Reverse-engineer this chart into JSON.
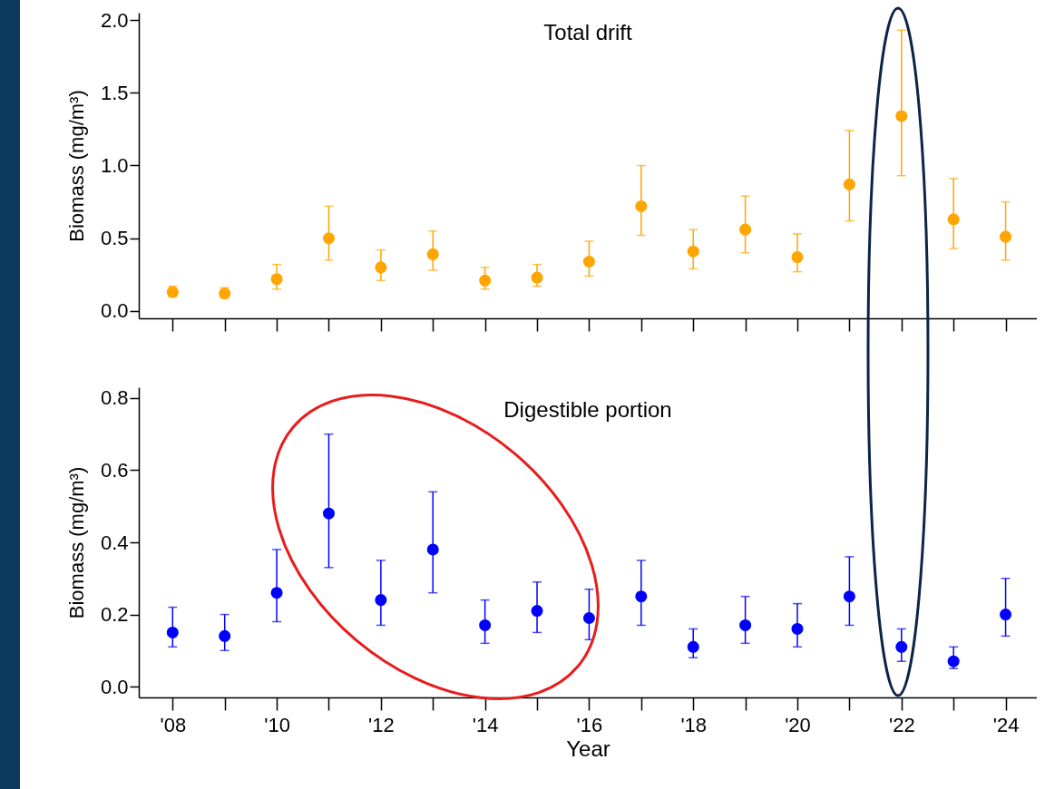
{
  "chart_data": [
    {
      "type": "scatter",
      "title": "Total drift",
      "ylabel": "Biomass (mg/m³)",
      "marker": "circle",
      "tick_labels": "y",
      "x": [
        2008,
        2009,
        2010,
        2011,
        2012,
        2013,
        2014,
        2015,
        2016,
        2017,
        2018,
        2019,
        2020,
        2021,
        2022,
        2023,
        2024
      ],
      "series": [
        {
          "color": "#ffa500",
          "values": [
            0.13,
            0.12,
            0.22,
            0.5,
            0.3,
            0.39,
            0.21,
            0.23,
            0.34,
            0.72,
            0.41,
            0.56,
            0.37,
            0.87,
            1.34,
            0.63,
            0.51
          ],
          "errors": [
            [
              0.1,
              0.17
            ],
            [
              0.09,
              0.16
            ],
            [
              0.15,
              0.32
            ],
            [
              0.35,
              0.72
            ],
            [
              0.21,
              0.42
            ],
            [
              0.28,
              0.55
            ],
            [
              0.15,
              0.3
            ],
            [
              0.17,
              0.32
            ],
            [
              0.24,
              0.48
            ],
            [
              0.52,
              1.0
            ],
            [
              0.29,
              0.56
            ],
            [
              0.4,
              0.79
            ],
            [
              0.27,
              0.53
            ],
            [
              0.62,
              1.24
            ],
            [
              0.93,
              1.93
            ],
            [
              0.43,
              0.91
            ],
            [
              0.35,
              0.75
            ]
          ]
        }
      ],
      "xlim": [
        2007.35,
        2024.6
      ],
      "xticks": [
        {
          "value": 2008,
          "label": null
        },
        {
          "value": 2009,
          "label": null
        },
        {
          "value": 2010,
          "label": null
        },
        {
          "value": 2011,
          "label": null
        },
        {
          "value": 2012,
          "label": null
        },
        {
          "value": 2013,
          "label": null
        },
        {
          "value": 2014,
          "label": null
        },
        {
          "value": 2015,
          "label": null
        },
        {
          "value": 2016,
          "label": null
        },
        {
          "value": 2017,
          "label": null
        },
        {
          "value": 2018,
          "label": null
        },
        {
          "value": 2019,
          "label": null
        },
        {
          "value": 2020,
          "label": null
        },
        {
          "value": 2021,
          "label": null
        },
        {
          "value": 2022,
          "label": null
        },
        {
          "value": 2023,
          "label": null
        },
        {
          "value": 2024,
          "label": null
        }
      ],
      "ylim": [
        -0.05,
        2.05
      ],
      "yticks": [
        {
          "value": 0,
          "label": "0.0"
        },
        {
          "value": 0.5,
          "label": "0.5"
        },
        {
          "value": 1,
          "label": "1.0"
        },
        {
          "value": 1.5,
          "label": "1.5"
        },
        {
          "value": 2,
          "label": "2.0"
        }
      ]
    },
    {
      "type": "scatter",
      "title": "Digestible portion",
      "xlabel": "Year",
      "ylabel": "Biomass (mg/m³)",
      "marker": "circle",
      "x": [
        2008,
        2009,
        2010,
        2011,
        2012,
        2013,
        2014,
        2015,
        2016,
        2017,
        2018,
        2019,
        2020,
        2021,
        2022,
        2023,
        2024
      ],
      "series": [
        {
          "color": "#0000ff",
          "values": [
            0.15,
            0.14,
            0.26,
            0.48,
            0.24,
            0.38,
            0.17,
            0.21,
            0.19,
            0.25,
            0.11,
            0.17,
            0.16,
            0.25,
            0.11,
            0.07,
            0.2
          ],
          "errors": [
            [
              0.11,
              0.22
            ],
            [
              0.1,
              0.2
            ],
            [
              0.18,
              0.38
            ],
            [
              0.33,
              0.7
            ],
            [
              0.17,
              0.35
            ],
            [
              0.26,
              0.54
            ],
            [
              0.12,
              0.24
            ],
            [
              0.15,
              0.29
            ],
            [
              0.13,
              0.27
            ],
            [
              0.17,
              0.35
            ],
            [
              0.08,
              0.16
            ],
            [
              0.12,
              0.25
            ],
            [
              0.11,
              0.23
            ],
            [
              0.17,
              0.36
            ],
            [
              0.07,
              0.16
            ],
            [
              0.05,
              0.11
            ],
            [
              0.14,
              0.3
            ]
          ]
        }
      ],
      "xlim": [
        2007.35,
        2024.6
      ],
      "xticks": [
        {
          "value": 2008,
          "label": "'08"
        },
        {
          "value": 2009,
          "label": null
        },
        {
          "value": 2010,
          "label": "'10"
        },
        {
          "value": 2011,
          "label": null
        },
        {
          "value": 2012,
          "label": "'12"
        },
        {
          "value": 2013,
          "label": null
        },
        {
          "value": 2014,
          "label": "'14"
        },
        {
          "value": 2015,
          "label": null
        },
        {
          "value": 2016,
          "label": "'16"
        },
        {
          "value": 2017,
          "label": null
        },
        {
          "value": 2018,
          "label": "'18"
        },
        {
          "value": 2019,
          "label": null
        },
        {
          "value": 2020,
          "label": "'20"
        },
        {
          "value": 2021,
          "label": null
        },
        {
          "value": 2022,
          "label": "'22"
        },
        {
          "value": 2023,
          "label": null
        },
        {
          "value": 2024,
          "label": "'24"
        }
      ],
      "ylim": [
        -0.03,
        0.83
      ],
      "yticks": [
        {
          "value": 0,
          "label": "0.0"
        },
        {
          "value": 0.2,
          "label": "0.2"
        },
        {
          "value": 0.4,
          "label": "0.4"
        },
        {
          "value": 0.6,
          "label": "0.6"
        },
        {
          "value": 0.8,
          "label": "0.8"
        }
      ]
    }
  ]
}
